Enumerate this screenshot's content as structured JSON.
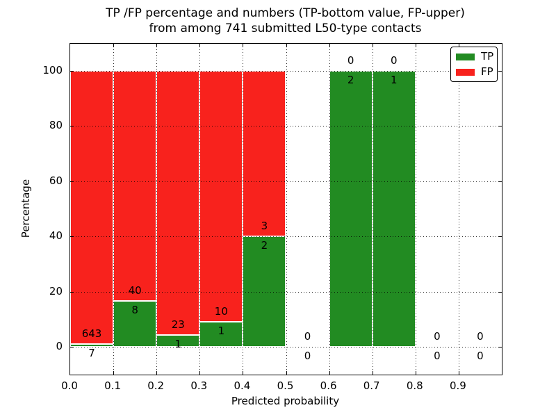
{
  "chart_data": {
    "type": "bar",
    "stacked": true,
    "title_line1": "TP /FP percentage and numbers (TP-bottom value, FP-upper)",
    "title_line2": "from among 741 submitted L50-type contacts",
    "xlabel": "Predicted probability",
    "ylabel": "Percentage",
    "x_ticks": [
      "0.0",
      "0.1",
      "0.2",
      "0.3",
      "0.4",
      "0.5",
      "0.6",
      "0.7",
      "0.8",
      "0.9"
    ],
    "y_ticks": [
      "0",
      "20",
      "40",
      "60",
      "80",
      "100"
    ],
    "xlim": [
      0.0,
      1.0
    ],
    "ylim": [
      0,
      100
    ],
    "grid": true,
    "grid_style": "dotted",
    "bins": [
      {
        "x0": 0.0,
        "x1": 0.1,
        "tp": 7,
        "fp": 643,
        "tp_pct": 1.08
      },
      {
        "x0": 0.1,
        "x1": 0.2,
        "tp": 8,
        "fp": 40,
        "tp_pct": 16.67
      },
      {
        "x0": 0.2,
        "x1": 0.3,
        "tp": 1,
        "fp": 23,
        "tp_pct": 4.17
      },
      {
        "x0": 0.3,
        "x1": 0.4,
        "tp": 1,
        "fp": 10,
        "tp_pct": 9.09
      },
      {
        "x0": 0.4,
        "x1": 0.5,
        "tp": 2,
        "fp": 3,
        "tp_pct": 40.0
      },
      {
        "x0": 0.5,
        "x1": 0.6,
        "tp": 0,
        "fp": 0,
        "tp_pct": null
      },
      {
        "x0": 0.6,
        "x1": 0.7,
        "tp": 2,
        "fp": 0,
        "tp_pct": 100.0
      },
      {
        "x0": 0.7,
        "x1": 0.8,
        "tp": 1,
        "fp": 0,
        "tp_pct": 100.0
      },
      {
        "x0": 0.8,
        "x1": 0.9,
        "tp": 0,
        "fp": 0,
        "tp_pct": null
      },
      {
        "x0": 0.9,
        "x1": 1.0,
        "tp": 0,
        "fp": 0,
        "tp_pct": null
      }
    ],
    "legend": {
      "position": "upper right",
      "entries": [
        {
          "label": "TP",
          "color": "#228b22"
        },
        {
          "label": "FP",
          "color": "#f8221d"
        }
      ]
    }
  }
}
